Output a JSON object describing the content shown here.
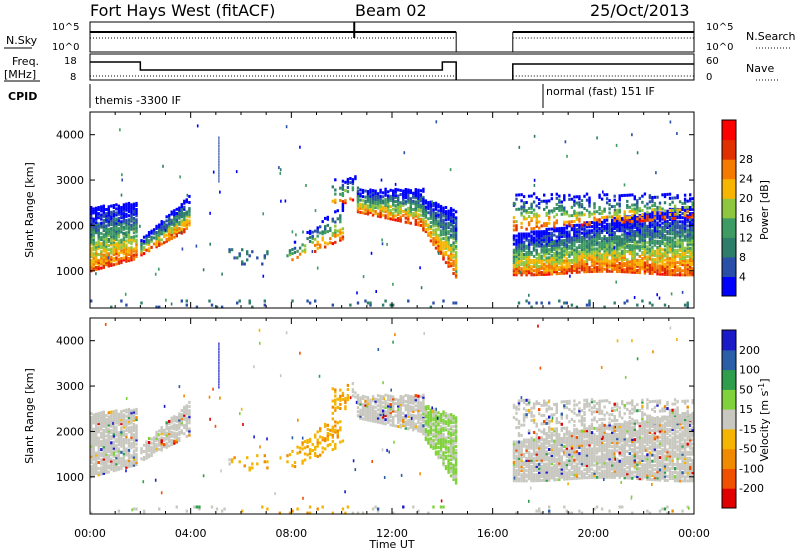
{
  "header": {
    "title": "Fort Hays West (fitACF)",
    "beam": "Beam 02",
    "date": "25/Oct/2013"
  },
  "noise_panel": {
    "left_label": "N.Sky",
    "right_label": "N.Search",
    "left_ticks": [
      "10^5",
      "10^0"
    ],
    "right_ticks": [
      "10^5",
      "10^0"
    ]
  },
  "freq_panel": {
    "left_label_1": "Freq.",
    "left_label_2": "[MHz]",
    "right_label": "Nave",
    "left_ticks": [
      "18",
      "8"
    ],
    "right_ticks": [
      "60",
      "0"
    ]
  },
  "cpid": {
    "label": "CPID",
    "mode1": "themis -3300 IF",
    "mode2": "normal (fast) 151 IF"
  },
  "colors": {
    "power": [
      "#0000ff",
      "#2a4fa8",
      "#2e7d6a",
      "#3f9b64",
      "#8ec63f",
      "#f7b500",
      "#f47a00",
      "#e03000",
      "#ff0000"
    ],
    "velocity": [
      "#e00000",
      "#f05000",
      "#f08a00",
      "#f4b400",
      "#c8c8c0",
      "#7fd23c",
      "#2e9e4c",
      "#2a5fa8",
      "#1a1ac8"
    ]
  },
  "chart_data": [
    {
      "type": "heatmap",
      "name": "Power",
      "ylabel": "Slant Range [km]",
      "colorbar_label": "Power [dB]",
      "colorbar_ticks": [
        "4",
        "8",
        "12",
        "16",
        "20",
        "24",
        "28"
      ],
      "yticks": [
        "1000",
        "2000",
        "3000",
        "4000"
      ],
      "ylim": [
        180,
        4500
      ],
      "xlim_hours": [
        0,
        24
      ],
      "gap_hours": [
        14.55,
        16.8
      ],
      "regions_km_hours": [
        {
          "t0": 0.0,
          "t1": 1.9,
          "r0": 1000,
          "r1": 2500
        },
        {
          "t0": 2.0,
          "t1": 3.9,
          "r0": 1300,
          "r1": 2700
        },
        {
          "t0": 10.6,
          "t1": 14.5,
          "r0": 800,
          "r1": 2800
        },
        {
          "t0": 16.8,
          "t1": 23.9,
          "r0": 950,
          "r1": 2700
        }
      ]
    },
    {
      "type": "heatmap",
      "name": "Velocity",
      "ylabel": "Slant Range [km]",
      "colorbar_label": "Velocity [m s^-1]",
      "colorbar_ticks": [
        "-200",
        "-100",
        "-50",
        "-15",
        "15",
        "50",
        "100",
        "200"
      ],
      "yticks": [
        "1000",
        "2000",
        "3000",
        "4000"
      ],
      "ylim": [
        180,
        4500
      ],
      "xlim_hours": [
        0,
        24
      ],
      "gap_hours": [
        14.55,
        16.8
      ]
    }
  ],
  "xaxis": {
    "label": "Time UT",
    "ticks": [
      "00:00",
      "04:00",
      "08:00",
      "12:00",
      "16:00",
      "20:00",
      "00:00"
    ]
  }
}
